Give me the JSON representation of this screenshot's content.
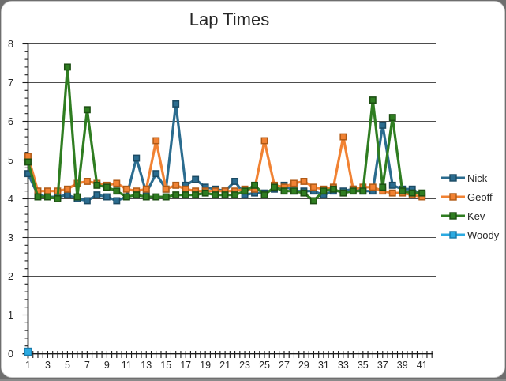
{
  "window": {
    "background_color": "#8a8a8a",
    "canvas_color": "#ffffff"
  },
  "chart_data": {
    "type": "line",
    "title": "Lap Times",
    "xlabel": "",
    "ylabel": "",
    "x_count": 41,
    "x_tick_labels": [
      1,
      3,
      5,
      7,
      9,
      11,
      13,
      15,
      17,
      19,
      21,
      23,
      25,
      27,
      29,
      31,
      33,
      35,
      37,
      39,
      41
    ],
    "ylim": [
      0,
      8
    ],
    "y_tick_labels": [
      0,
      1,
      2,
      3,
      4,
      5,
      6,
      7,
      8
    ],
    "y_major_step": 1,
    "y_minor_step": 0.2,
    "grid": "horizontal-major",
    "gridline_color": "#4d4d4d",
    "axis_color": "#1a1a1a",
    "tick_label_color": "#262626",
    "legend_position": "right",
    "series": [
      {
        "name": "Nick",
        "color": "#2b6c8f",
        "edge_color": "#1b4a63",
        "values": [
          4.65,
          4.1,
          4.05,
          4.05,
          4.1,
          4.0,
          3.95,
          4.1,
          4.05,
          3.95,
          4.05,
          5.05,
          4.15,
          4.65,
          4.25,
          6.45,
          4.35,
          4.5,
          4.3,
          4.25,
          4.2,
          4.45,
          4.1,
          4.15,
          4.15,
          4.25,
          4.35,
          4.2,
          4.2,
          4.2,
          4.1,
          4.2,
          4.2,
          4.25,
          4.2,
          4.2,
          5.9,
          4.35,
          4.25,
          4.25,
          4.1
        ]
      },
      {
        "name": "Geoff",
        "color": "#f18233",
        "edge_color": "#b05a16",
        "values": [
          5.1,
          4.2,
          4.2,
          4.2,
          4.25,
          4.4,
          4.45,
          4.4,
          4.35,
          4.4,
          4.25,
          4.2,
          4.25,
          5.5,
          4.25,
          4.35,
          4.25,
          4.2,
          4.2,
          4.2,
          4.2,
          4.2,
          4.25,
          4.25,
          5.5,
          4.35,
          4.3,
          4.4,
          4.45,
          4.3,
          4.25,
          4.3,
          5.6,
          4.25,
          4.3,
          4.3,
          4.2,
          4.15,
          4.15,
          4.1,
          4.05
        ]
      },
      {
        "name": "Kev",
        "color": "#2f7d21",
        "edge_color": "#1c4e12",
        "values": [
          4.95,
          4.05,
          4.05,
          4.0,
          7.4,
          4.05,
          6.3,
          4.35,
          4.3,
          4.2,
          4.05,
          4.1,
          4.05,
          4.05,
          4.05,
          4.1,
          4.1,
          4.1,
          4.15,
          4.1,
          4.1,
          4.1,
          4.2,
          4.35,
          4.1,
          4.3,
          4.2,
          4.2,
          4.15,
          3.95,
          4.2,
          4.25,
          4.15,
          4.2,
          4.2,
          6.55,
          4.3,
          6.1,
          4.2,
          4.15,
          4.15
        ]
      },
      {
        "name": "Woody",
        "color": "#2caae1",
        "edge_color": "#1779a9",
        "values": [
          0.05,
          null,
          null,
          null,
          null,
          null,
          null,
          null,
          null,
          null,
          null,
          null,
          null,
          null,
          null,
          null,
          null,
          null,
          null,
          null,
          null,
          null,
          null,
          null,
          null,
          null,
          null,
          null,
          null,
          null,
          null,
          null,
          null,
          null,
          null,
          null,
          null,
          null,
          null,
          null,
          null
        ]
      }
    ]
  }
}
